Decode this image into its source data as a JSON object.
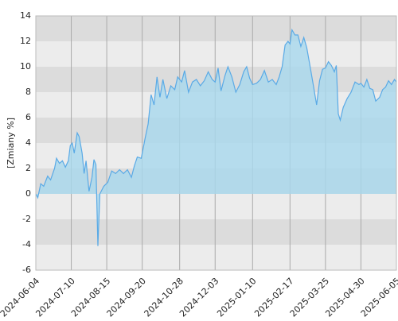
{
  "chart_data": {
    "type": "area",
    "y_label": "[Zmiany %]",
    "x": [
      "2024-06-04",
      "2024-06-06",
      "2024-06-09",
      "2024-06-12",
      "2024-06-16",
      "2024-06-19",
      "2024-06-23",
      "2024-06-25",
      "2024-06-28",
      "2024-07-01",
      "2024-07-04",
      "2024-07-07",
      "2024-07-09",
      "2024-07-11",
      "2024-07-13",
      "2024-07-16",
      "2024-07-18",
      "2024-07-21",
      "2024-07-23",
      "2024-07-25",
      "2024-07-28",
      "2024-07-31",
      "2024-08-02",
      "2024-08-04",
      "2024-08-06",
      "2024-08-08",
      "2024-08-12",
      "2024-08-16",
      "2024-08-20",
      "2024-08-24",
      "2024-08-28",
      "2024-09-01",
      "2024-09-05",
      "2024-09-09",
      "2024-09-12",
      "2024-09-15",
      "2024-09-19",
      "2024-09-23",
      "2024-09-26",
      "2024-09-29",
      "2024-10-02",
      "2024-10-05",
      "2024-10-08",
      "2024-10-11",
      "2024-10-15",
      "2024-10-19",
      "2024-10-23",
      "2024-10-26",
      "2024-10-30",
      "2024-11-02",
      "2024-11-06",
      "2024-11-10",
      "2024-11-14",
      "2024-11-18",
      "2024-11-22",
      "2024-11-26",
      "2024-11-30",
      "2024-12-03",
      "2024-12-06",
      "2024-12-09",
      "2024-12-13",
      "2024-12-16",
      "2024-12-20",
      "2024-12-24",
      "2024-12-28",
      "2025-01-01",
      "2025-01-04",
      "2025-01-07",
      "2025-01-10",
      "2025-01-14",
      "2025-01-18",
      "2025-01-22",
      "2025-01-26",
      "2025-01-30",
      "2025-02-03",
      "2025-02-06",
      "2025-02-09",
      "2025-02-12",
      "2025-02-15",
      "2025-02-17",
      "2025-02-19",
      "2025-02-22",
      "2025-02-25",
      "2025-02-28",
      "2025-03-03",
      "2025-03-06",
      "2025-03-09",
      "2025-03-13",
      "2025-03-16",
      "2025-03-19",
      "2025-03-22",
      "2025-03-25",
      "2025-03-28",
      "2025-03-31",
      "2025-04-03",
      "2025-04-05",
      "2025-04-07",
      "2025-04-09",
      "2025-04-12",
      "2025-04-16",
      "2025-04-20",
      "2025-04-24",
      "2025-04-28",
      "2025-04-30",
      "2025-05-03",
      "2025-05-06",
      "2025-05-09",
      "2025-05-12",
      "2025-05-15",
      "2025-05-19",
      "2025-05-22",
      "2025-05-25",
      "2025-05-28",
      "2025-05-31",
      "2025-06-03",
      "2025-06-05"
    ],
    "series": [
      {
        "color": "#5aaae6",
        "fill": "#a8d8ee",
        "values": [
          0,
          -0.3,
          0.8,
          0.6,
          1.4,
          1.1,
          2.0,
          2.8,
          2.4,
          2.6,
          2.1,
          2.6,
          3.8,
          4.0,
          3.2,
          4.8,
          4.5,
          3.2,
          1.6,
          2.6,
          0.2,
          1.3,
          2.7,
          2.3,
          -4.1,
          0.0,
          0.6,
          0.9,
          1.8,
          1.6,
          1.9,
          1.6,
          1.9,
          1.3,
          2.2,
          2.9,
          2.8,
          4.4,
          5.5,
          7.8,
          7.0,
          9.2,
          7.6,
          9.0,
          7.5,
          8.5,
          8.2,
          9.2,
          8.8,
          9.7,
          8.0,
          8.8,
          9.0,
          8.5,
          8.9,
          9.6,
          9.0,
          8.8,
          9.9,
          8.1,
          9.3,
          10.0,
          9.2,
          8.0,
          8.6,
          9.6,
          10.0,
          9.1,
          8.6,
          8.7,
          9.0,
          9.7,
          8.8,
          9.0,
          8.6,
          9.2,
          10.0,
          11.7,
          12.0,
          11.8,
          12.9,
          12.5,
          12.5,
          11.6,
          12.3,
          11.5,
          10.2,
          8.4,
          7.0,
          8.9,
          9.8,
          9.9,
          10.4,
          10.1,
          9.6,
          10.1,
          6.3,
          5.8,
          6.8,
          7.5,
          8.0,
          8.8,
          8.6,
          8.7,
          8.4,
          9.0,
          8.3,
          8.2,
          7.3,
          7.6,
          8.2,
          8.4,
          8.9,
          8.6,
          9.0,
          8.8
        ]
      }
    ],
    "xlim": [
      "2024-06-04",
      "2025-06-05"
    ],
    "xticks": [
      "2024-06-04",
      "2024-07-10",
      "2024-08-15",
      "2024-09-20",
      "2024-10-28",
      "2024-12-03",
      "2025-01-10",
      "2025-02-17",
      "2025-03-25",
      "2025-04-30",
      "2025-06-05"
    ],
    "ylim": [
      -6,
      14
    ],
    "yticks": [
      -6,
      -4,
      -2,
      0,
      2,
      4,
      6,
      8,
      10,
      12,
      14
    ],
    "grid": true
  }
}
